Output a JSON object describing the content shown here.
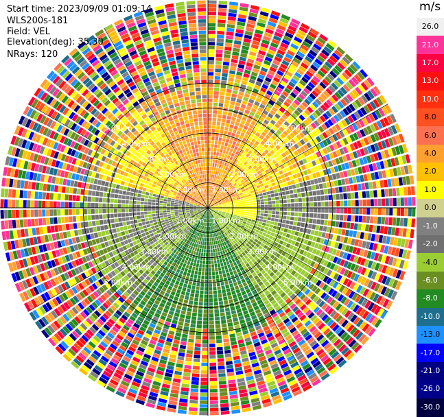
{
  "header": {
    "start_time": "Start time: 2023/09/09 01:09:14",
    "station": "WLS200s-181",
    "field": "Field: VEL",
    "elevation": "Elevation(deg): 35.30",
    "nrays": "NRays: 120"
  },
  "colorbar": {
    "unit": "m/s",
    "ticks": [
      "26.0",
      "21.0",
      "17.0",
      "13.0",
      "10.0",
      "8.0",
      "6.0",
      "4.0",
      "2.0",
      "1.0",
      "0.0",
      "-1.0",
      "-2.0",
      "-4.0",
      "-6.0",
      "-8.0",
      "-10.0",
      "-13.0",
      "-17.0",
      "-21.0",
      "-26.0",
      "-30.0"
    ],
    "colors": [
      "#f0f0f0",
      "#ff3399",
      "#ff0040",
      "#ff1010",
      "#ff3010",
      "#ff5020",
      "#ff7050",
      "#ffa030",
      "#ffc000",
      "#ffff00",
      "#d0d090",
      "#808080",
      "#707070",
      "#9acd32",
      "#6b8e23",
      "#228b22",
      "#1e6e8e",
      "#1e90ff",
      "#0000ff",
      "#000080",
      "#00008b",
      "#000040"
    ]
  },
  "chart_data": {
    "type": "ppi-radar",
    "field": "VEL",
    "units": "m/s",
    "nrays": 120,
    "elevation_deg": 35.3,
    "range_rings": [
      {
        "label": "1.00km",
        "value": 1.0
      },
      {
        "label": "2.00km",
        "value": 2.0
      },
      {
        "label": "3.00km",
        "value": 3.0
      },
      {
        "label": "4.00km",
        "value": 4.0
      },
      {
        "label": "5.00km",
        "value": 5.0
      }
    ],
    "ring_labels_up": [
      "1.00km",
      "2.00km",
      "3.00km",
      "4.00km",
      "5.00km"
    ],
    "max_range_km": 5.0,
    "colorbar_range": [
      -30.0,
      26.0
    ],
    "dominant_pattern": "positive (yellow/orange) velocities to the north, negative (green) velocities to the south, near-zero (grey) along west-east line, noisy values beyond ~3 km"
  }
}
